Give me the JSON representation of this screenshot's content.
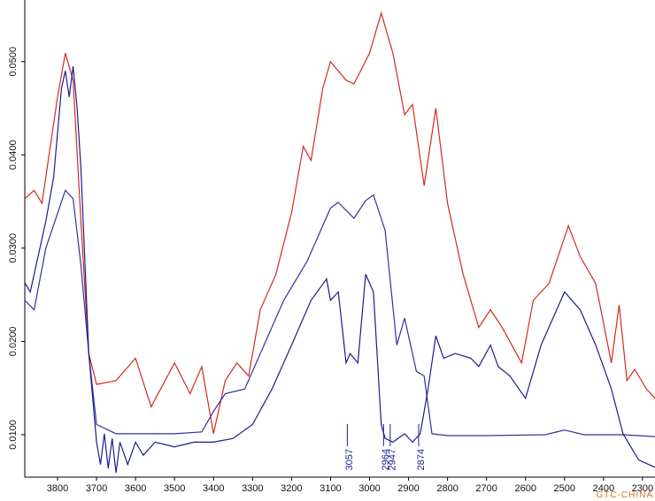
{
  "chart_data": {
    "type": "line",
    "xlim": [
      3884,
      2268
    ],
    "ylim": [
      0.00545,
      0.0566
    ],
    "xticks": [
      3800,
      3700,
      3600,
      3500,
      3400,
      3300,
      3200,
      3100,
      3000,
      2900,
      2800,
      2700,
      2600,
      2500,
      2400,
      2300
    ],
    "yticks": [
      {
        "value": 0.01,
        "label": "0.0100"
      },
      {
        "value": 0.02,
        "label": "0.0200"
      },
      {
        "value": 0.03,
        "label": "0.0300"
      },
      {
        "value": 0.04,
        "label": "0.0400"
      },
      {
        "value": 0.05,
        "label": "0.0500"
      }
    ],
    "peak_labels": [
      3057,
      2964,
      2947,
      2874
    ],
    "watermark": "GTC-CHINA",
    "series": [
      {
        "color": "#d22a1e",
        "x": [
          3884,
          3860,
          3840,
          3800,
          3780,
          3760,
          3740,
          3720,
          3700,
          3650,
          3600,
          3560,
          3500,
          3460,
          3430,
          3400,
          3370,
          3340,
          3310,
          3280,
          3240,
          3200,
          3170,
          3150,
          3120,
          3100,
          3060,
          3040,
          3000,
          2970,
          2940,
          2910,
          2890,
          2860,
          2830,
          2800,
          2760,
          2720,
          2690,
          2660,
          2610,
          2580,
          2540,
          2490,
          2460,
          2420,
          2380,
          2360,
          2340,
          2320,
          2290,
          2268
        ],
        "values": [
          0.0353,
          0.0362,
          0.0348,
          0.0462,
          0.0509,
          0.048,
          0.0329,
          0.0187,
          0.0154,
          0.0158,
          0.0182,
          0.013,
          0.0177,
          0.0144,
          0.0173,
          0.0101,
          0.0158,
          0.0177,
          0.0163,
          0.0234,
          0.0272,
          0.0338,
          0.0409,
          0.0394,
          0.0471,
          0.05,
          0.048,
          0.0476,
          0.0509,
          0.0552,
          0.0509,
          0.0443,
          0.0454,
          0.0367,
          0.045,
          0.0348,
          0.0272,
          0.0215,
          0.0234,
          0.0215,
          0.0177,
          0.0244,
          0.0262,
          0.0324,
          0.0291,
          0.0262,
          0.0177,
          0.0239,
          0.0158,
          0.017,
          0.0149,
          0.0139
        ]
      },
      {
        "color": "#3232a0",
        "x": [
          3884,
          3860,
          3830,
          3780,
          3760,
          3740,
          3720,
          3700,
          3650,
          3500,
          3430,
          3400,
          3370,
          3320,
          3280,
          3220,
          3160,
          3100,
          3080,
          3040,
          3010,
          2990,
          2960,
          2930,
          2910,
          2880,
          2860,
          2840,
          2800,
          2700,
          2550,
          2500,
          2450,
          2350,
          2268
        ],
        "values": [
          0.0244,
          0.0234,
          0.03,
          0.0362,
          0.0353,
          0.0282,
          0.0187,
          0.0111,
          0.0101,
          0.0101,
          0.0103,
          0.0125,
          0.0144,
          0.0149,
          0.0187,
          0.0244,
          0.0286,
          0.0343,
          0.0349,
          0.0332,
          0.0351,
          0.0357,
          0.0319,
          0.0196,
          0.0225,
          0.0168,
          0.0163,
          0.0101,
          0.0099,
          0.0099,
          0.01,
          0.0105,
          0.01,
          0.01,
          0.0098
        ]
      },
      {
        "color": "#1c1c8c",
        "x": [
          3884,
          3870,
          3850,
          3830,
          3810,
          3790,
          3780,
          3770,
          3760,
          3750,
          3740,
          3720,
          3700,
          3690,
          3680,
          3670,
          3660,
          3650,
          3640,
          3620,
          3600,
          3580,
          3550,
          3500,
          3450,
          3400,
          3350,
          3300,
          3250,
          3200,
          3150,
          3110,
          3100,
          3080,
          3060,
          3050,
          3030,
          3010,
          2990,
          2970,
          2960,
          2940,
          2910,
          2890,
          2870,
          2850,
          2830,
          2810,
          2780,
          2740,
          2720,
          2690,
          2670,
          2640,
          2600,
          2560,
          2500,
          2460,
          2420,
          2380,
          2350,
          2330,
          2310,
          2268
        ],
        "values": [
          0.0263,
          0.0253,
          0.0291,
          0.0329,
          0.0376,
          0.0471,
          0.049,
          0.0462,
          0.0495,
          0.0452,
          0.0386,
          0.0187,
          0.0092,
          0.0068,
          0.0101,
          0.0064,
          0.0096,
          0.0059,
          0.0092,
          0.0068,
          0.0092,
          0.0078,
          0.0092,
          0.0087,
          0.0092,
          0.0092,
          0.0096,
          0.0111,
          0.0149,
          0.0196,
          0.0244,
          0.0267,
          0.0244,
          0.0253,
          0.0177,
          0.0187,
          0.0177,
          0.0272,
          0.0253,
          0.0111,
          0.0096,
          0.0092,
          0.0101,
          0.0092,
          0.0101,
          0.0149,
          0.0206,
          0.0182,
          0.0187,
          0.0182,
          0.0173,
          0.0196,
          0.0173,
          0.0163,
          0.0139,
          0.0196,
          0.0253,
          0.0234,
          0.0196,
          0.0149,
          0.0101,
          0.0087,
          0.0073,
          0.0065
        ]
      }
    ]
  }
}
